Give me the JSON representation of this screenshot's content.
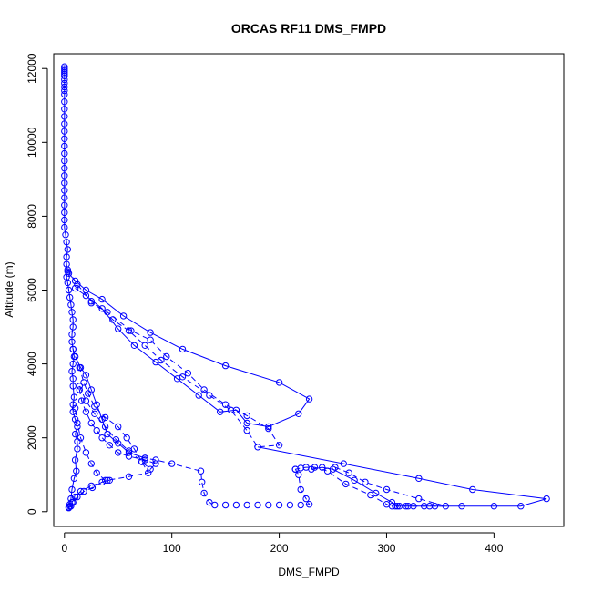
{
  "chart_data": {
    "type": "scatter",
    "title": "ORCAS RF11 DMS_FMPD",
    "xlabel": "DMS_FMPD",
    "ylabel": "Altitude (m)",
    "xlim": [
      -10,
      465
    ],
    "ylim": [
      -400,
      12400
    ],
    "xticks": [
      0,
      100,
      200,
      300,
      400
    ],
    "yticks": [
      0,
      2000,
      4000,
      6000,
      8000,
      10000,
      12000
    ],
    "grid": false,
    "legend": "none",
    "series": [
      {
        "color": "#0000ff",
        "marker": "open-circle",
        "line": "solid",
        "points": [
          [
            0,
            12050
          ],
          [
            0,
            12000
          ],
          [
            0,
            11950
          ],
          [
            0,
            11900
          ],
          [
            0,
            11850
          ],
          [
            0,
            11800
          ],
          [
            0,
            11700
          ],
          [
            0,
            11600
          ],
          [
            0,
            11500
          ],
          [
            0,
            11400
          ],
          [
            0,
            11300
          ],
          [
            0,
            11100
          ],
          [
            0,
            10900
          ],
          [
            0,
            10700
          ],
          [
            0,
            10500
          ],
          [
            0,
            10300
          ],
          [
            0,
            10100
          ],
          [
            0,
            9900
          ],
          [
            0,
            9700
          ],
          [
            0,
            9500
          ],
          [
            0,
            9300
          ],
          [
            0,
            9100
          ],
          [
            0,
            8900
          ],
          [
            0,
            8700
          ],
          [
            0,
            8500
          ],
          [
            0,
            8300
          ],
          [
            0,
            8100
          ],
          [
            0,
            7900
          ],
          [
            0,
            7700
          ],
          [
            1,
            7500
          ],
          [
            2,
            7300
          ],
          [
            3,
            7100
          ],
          [
            2,
            6900
          ],
          [
            2,
            6700
          ],
          [
            3,
            6500
          ],
          [
            2,
            6350
          ],
          [
            3,
            6200
          ],
          [
            4,
            6000
          ],
          [
            5,
            5800
          ],
          [
            6,
            5600
          ],
          [
            7,
            5400
          ],
          [
            8,
            5200
          ],
          [
            8,
            5000
          ],
          [
            7,
            4800
          ],
          [
            7,
            4600
          ],
          [
            8,
            4400
          ],
          [
            9,
            4200
          ],
          [
            8,
            4000
          ],
          [
            7,
            3800
          ],
          [
            8,
            3600
          ],
          [
            8,
            3400
          ],
          [
            9,
            3100
          ],
          [
            8,
            2900
          ],
          [
            8,
            2700
          ],
          [
            10,
            2500
          ],
          [
            12,
            2300
          ],
          [
            10,
            2100
          ],
          [
            12,
            1900
          ],
          [
            12,
            1700
          ],
          [
            10,
            1400
          ],
          [
            11,
            1100
          ],
          [
            9,
            900
          ],
          [
            7,
            600
          ],
          [
            6,
            350
          ],
          [
            5,
            200
          ],
          [
            4,
            120
          ]
        ]
      },
      {
        "color": "#0000ff",
        "marker": "open-circle",
        "line": "solid",
        "points": [
          [
            4,
            6450
          ],
          [
            10,
            6250
          ],
          [
            20,
            6000
          ],
          [
            35,
            5750
          ],
          [
            55,
            5300
          ],
          [
            80,
            4850
          ],
          [
            110,
            4400
          ],
          [
            150,
            3950
          ],
          [
            200,
            3500
          ],
          [
            228,
            3050
          ],
          [
            218,
            2650
          ],
          [
            190,
            2300
          ],
          [
            170,
            2400
          ],
          [
            160,
            2750
          ],
          [
            145,
            2700
          ],
          [
            125,
            3150
          ],
          [
            105,
            3600
          ],
          [
            85,
            4050
          ],
          [
            65,
            4500
          ],
          [
            50,
            4950
          ],
          [
            35,
            5500
          ],
          [
            20,
            5850
          ],
          [
            10,
            6050
          ]
        ]
      },
      {
        "color": "#0000ff",
        "marker": "open-circle",
        "line": "dashed",
        "points": [
          [
            3,
            6550
          ],
          [
            12,
            6150
          ],
          [
            25,
            5700
          ],
          [
            45,
            5200
          ],
          [
            60,
            4900
          ],
          [
            75,
            4500
          ],
          [
            90,
            4100
          ],
          [
            110,
            3650
          ],
          [
            135,
            3150
          ],
          [
            155,
            2750
          ],
          [
            170,
            2200
          ],
          [
            180,
            1750
          ],
          [
            200,
            1800
          ],
          [
            190,
            2250
          ],
          [
            170,
            2600
          ],
          [
            150,
            2900
          ],
          [
            130,
            3300
          ],
          [
            115,
            3750
          ],
          [
            95,
            4200
          ],
          [
            80,
            4650
          ],
          [
            62,
            4900
          ],
          [
            40,
            5400
          ],
          [
            25,
            5650
          ]
        ]
      },
      {
        "color": "#0000ff",
        "marker": "open-circle",
        "line": "solid",
        "points": [
          [
            180,
            1750
          ],
          [
            260,
            1300
          ],
          [
            330,
            900
          ],
          [
            380,
            600
          ],
          [
            449,
            350
          ],
          [
            425,
            150
          ],
          [
            400,
            150
          ],
          [
            370,
            150
          ],
          [
            340,
            150
          ],
          [
            320,
            150
          ],
          [
            310,
            150
          ],
          [
            305,
            250
          ],
          [
            290,
            500
          ],
          [
            270,
            850
          ],
          [
            250,
            1150
          ],
          [
            240,
            1200
          ],
          [
            230,
            1150
          ]
        ]
      },
      {
        "color": "#0000ff",
        "marker": "open-circle",
        "line": "dashed",
        "points": [
          [
            252,
            1200
          ],
          [
            265,
            1050
          ],
          [
            280,
            800
          ],
          [
            300,
            600
          ],
          [
            330,
            350
          ],
          [
            355,
            150
          ],
          [
            345,
            150
          ],
          [
            335,
            150
          ],
          [
            325,
            150
          ],
          [
            318,
            150
          ],
          [
            312,
            150
          ],
          [
            308,
            150
          ],
          [
            305,
            150
          ],
          [
            300,
            200
          ],
          [
            285,
            450
          ],
          [
            262,
            750
          ],
          [
            245,
            1100
          ],
          [
            233,
            1200
          ],
          [
            225,
            1200
          ],
          [
            220,
            1180
          ],
          [
            215,
            1150
          ]
        ]
      },
      {
        "color": "#0000ff",
        "marker": "open-circle",
        "line": "dashed",
        "points": [
          [
            215,
            1150
          ],
          [
            218,
            1000
          ],
          [
            220,
            600
          ],
          [
            225,
            350
          ],
          [
            228,
            200
          ],
          [
            220,
            180
          ],
          [
            210,
            180
          ],
          [
            200,
            180
          ],
          [
            190,
            180
          ],
          [
            180,
            180
          ],
          [
            170,
            180
          ],
          [
            160,
            180
          ],
          [
            150,
            180
          ],
          [
            140,
            180
          ],
          [
            135,
            250
          ],
          [
            130,
            500
          ],
          [
            128,
            800
          ],
          [
            127,
            1100
          ],
          [
            100,
            1300
          ],
          [
            85,
            1400
          ],
          [
            75,
            1450
          ]
        ]
      },
      {
        "color": "#0000ff",
        "marker": "open-circle",
        "line": "solid",
        "points": [
          [
            75,
            1450
          ],
          [
            60,
            1600
          ],
          [
            50,
            1850
          ],
          [
            40,
            2100
          ],
          [
            35,
            2500
          ],
          [
            30,
            2900
          ],
          [
            25,
            3300
          ],
          [
            20,
            3700
          ],
          [
            15,
            3900
          ],
          [
            10,
            4200
          ]
        ]
      },
      {
        "color": "#0000ff",
        "marker": "open-circle",
        "line": "dashed",
        "points": [
          [
            8,
            4400
          ],
          [
            14,
            3900
          ],
          [
            18,
            3500
          ],
          [
            22,
            3200
          ],
          [
            28,
            2850
          ],
          [
            38,
            2550
          ],
          [
            50,
            2300
          ],
          [
            58,
            2000
          ],
          [
            65,
            1700
          ],
          [
            72,
            1350
          ],
          [
            80,
            1150
          ],
          [
            85,
            1300
          ],
          [
            75,
            1400
          ],
          [
            60,
            1500
          ],
          [
            50,
            1600
          ],
          [
            42,
            1800
          ],
          [
            35,
            2000
          ],
          [
            30,
            2200
          ],
          [
            25,
            2400
          ],
          [
            20,
            2700
          ],
          [
            16,
            3000
          ],
          [
            14,
            3300
          ]
        ]
      },
      {
        "color": "#0000ff",
        "marker": "open-circle",
        "line": "dashed",
        "points": [
          [
            14,
            3400
          ],
          [
            20,
            3000
          ],
          [
            28,
            2650
          ],
          [
            38,
            2300
          ],
          [
            48,
            1950
          ],
          [
            60,
            1650
          ],
          [
            72,
            1350
          ],
          [
            78,
            1050
          ],
          [
            60,
            950
          ],
          [
            40,
            850
          ],
          [
            25,
            700
          ],
          [
            15,
            550
          ],
          [
            10,
            400
          ],
          [
            7,
            250
          ],
          [
            5,
            150
          ]
        ]
      },
      {
        "color": "#0000ff",
        "marker": "open-circle",
        "line": "dashed",
        "points": [
          [
            38,
            850
          ],
          [
            30,
            1050
          ],
          [
            25,
            1300
          ],
          [
            20,
            1600
          ],
          [
            15,
            2000
          ],
          [
            12,
            2400
          ],
          [
            10,
            2800
          ]
        ]
      },
      {
        "color": "#0000ff",
        "marker": "open-circle",
        "line": "dashed",
        "points": [
          [
            4,
            100
          ],
          [
            6,
            150
          ],
          [
            8,
            250
          ],
          [
            12,
            400
          ],
          [
            18,
            550
          ],
          [
            26,
            650
          ],
          [
            35,
            800
          ],
          [
            42,
            850
          ]
        ]
      }
    ]
  }
}
